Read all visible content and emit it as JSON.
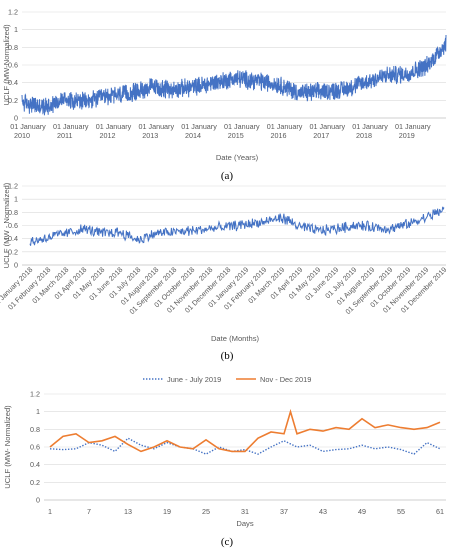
{
  "chart_data": [
    {
      "type": "line",
      "panel_label": "(a)",
      "ylabel": "UCLF (MW-Normalized)",
      "xlabel": "Date (Years)",
      "ylim": [
        0,
        1.2
      ],
      "yticks": [
        "0",
        "0.2",
        "0.4",
        "0.6",
        "0.8",
        "1",
        "1.2"
      ],
      "xtick_labels": [
        [
          "01 January",
          "2010"
        ],
        [
          "01 January",
          "2011"
        ],
        [
          "01 January",
          "2012"
        ],
        [
          "01 January",
          "2013"
        ],
        [
          "01 January",
          "2014"
        ],
        [
          "01 January",
          "2015"
        ],
        [
          "01 January",
          "2016"
        ],
        [
          "01 January",
          "2017"
        ],
        [
          "01 January",
          "2018"
        ],
        [
          "01 January",
          "2019"
        ]
      ],
      "grid": true,
      "color": "#4472c4",
      "series": [
        {
          "x_start": "2010-01",
          "x_end": "2019-12",
          "trend": [
            [
              "2010-01",
              0.18
            ],
            [
              "2010-07",
              0.12
            ],
            [
              "2011-01",
              0.22
            ],
            [
              "2011-07",
              0.18
            ],
            [
              "2012-01",
              0.25
            ],
            [
              "2012-07",
              0.27
            ],
            [
              "2013-01",
              0.35
            ],
            [
              "2013-07",
              0.32
            ],
            [
              "2014-01",
              0.35
            ],
            [
              "2014-07",
              0.4
            ],
            [
              "2015-01",
              0.45
            ],
            [
              "2015-07",
              0.42
            ],
            [
              "2016-01",
              0.38
            ],
            [
              "2016-07",
              0.28
            ],
            [
              "2017-01",
              0.3
            ],
            [
              "2017-07",
              0.32
            ],
            [
              "2018-01",
              0.4
            ],
            [
              "2018-07",
              0.48
            ],
            [
              "2019-01",
              0.5
            ],
            [
              "2019-07",
              0.6
            ],
            [
              "2019-12",
              0.85
            ]
          ],
          "noise": 0.09
        }
      ]
    },
    {
      "type": "line",
      "panel_label": "(b)",
      "ylabel": "UCLF (MW - Normalized)",
      "xlabel": "Date (Months)",
      "ylim": [
        0,
        1.2
      ],
      "yticks": [
        "0",
        "0.2",
        "0.4",
        "0.6",
        "0.8",
        "1",
        "1.2"
      ],
      "xtick_labels": [
        "01 January 2018",
        "01 February 2018",
        "01 March 2018",
        "01 April 2018",
        "01 May 2018",
        "01 June 2018",
        "01 July 2018",
        "01 August 2018",
        "01 September 2018",
        "01 October 2018",
        "01 November 2018",
        "01 December 2018",
        "01 January 2019",
        "01 February 2019",
        "01 March 2019",
        "01 April 2019",
        "01 May 2019",
        "01 June 2019",
        "01 July 2019",
        "01 August 2019",
        "01 September 2019",
        "01 October 2019",
        "01 November 2019",
        "01 December 2019"
      ],
      "grid": true,
      "color": "#4472c4",
      "series": [
        {
          "x_start": "2018-01",
          "x_end": "2019-12",
          "trend": [
            [
              "2018-01",
              0.35
            ],
            [
              "2018-02",
              0.42
            ],
            [
              "2018-03",
              0.48
            ],
            [
              "2018-04",
              0.55
            ],
            [
              "2018-05",
              0.48
            ],
            [
              "2018-06",
              0.5
            ],
            [
              "2018-07",
              0.38
            ],
            [
              "2018-08",
              0.48
            ],
            [
              "2018-09",
              0.5
            ],
            [
              "2018-10",
              0.52
            ],
            [
              "2018-11",
              0.55
            ],
            [
              "2018-12",
              0.58
            ],
            [
              "2019-01",
              0.62
            ],
            [
              "2019-02",
              0.65
            ],
            [
              "2019-03",
              0.72
            ],
            [
              "2019-04",
              0.58
            ],
            [
              "2019-05",
              0.52
            ],
            [
              "2019-06",
              0.55
            ],
            [
              "2019-07",
              0.6
            ],
            [
              "2019-08",
              0.58
            ],
            [
              "2019-09",
              0.55
            ],
            [
              "2019-10",
              0.62
            ],
            [
              "2019-11",
              0.72
            ],
            [
              "2019-12",
              0.85
            ]
          ],
          "noise": 0.07
        }
      ]
    },
    {
      "type": "line",
      "panel_label": "(c)",
      "ylabel": "UCLF (MW- Normalized)",
      "xlabel": "Days",
      "ylim": [
        0,
        1.2
      ],
      "yticks": [
        "0",
        "0.2",
        "0.4",
        "0.6",
        "0.8",
        "1",
        "1.2"
      ],
      "xticks": [
        1,
        7,
        13,
        19,
        25,
        31,
        37,
        43,
        49,
        55,
        61
      ],
      "xlim": [
        1,
        61
      ],
      "grid": true,
      "legend_position": "top",
      "series": [
        {
          "name": "June - July 2019",
          "color": "#4472c4",
          "style": "dotted",
          "x": [
            1,
            3,
            5,
            7,
            9,
            11,
            13,
            15,
            17,
            19,
            21,
            23,
            25,
            27,
            29,
            31,
            33,
            35,
            37,
            39,
            41,
            43,
            45,
            47,
            49,
            51,
            53,
            55,
            57,
            59,
            61
          ],
          "values": [
            0.58,
            0.57,
            0.58,
            0.65,
            0.62,
            0.55,
            0.7,
            0.62,
            0.58,
            0.65,
            0.6,
            0.58,
            0.52,
            0.6,
            0.55,
            0.57,
            0.52,
            0.6,
            0.67,
            0.6,
            0.62,
            0.55,
            0.57,
            0.58,
            0.62,
            0.58,
            0.6,
            0.57,
            0.52,
            0.65,
            0.58
          ]
        },
        {
          "name": "Nov - Dec 2019",
          "color": "#ed7d31",
          "style": "solid",
          "x": [
            1,
            3,
            5,
            7,
            9,
            11,
            13,
            15,
            17,
            19,
            21,
            23,
            25,
            27,
            29,
            31,
            33,
            35,
            37,
            38,
            39,
            41,
            43,
            45,
            47,
            49,
            51,
            53,
            55,
            57,
            59,
            61
          ],
          "values": [
            0.6,
            0.72,
            0.75,
            0.65,
            0.67,
            0.72,
            0.63,
            0.55,
            0.6,
            0.67,
            0.6,
            0.58,
            0.68,
            0.58,
            0.55,
            0.55,
            0.7,
            0.77,
            0.75,
            1.0,
            0.75,
            0.8,
            0.78,
            0.82,
            0.8,
            0.92,
            0.82,
            0.85,
            0.82,
            0.8,
            0.82,
            0.88
          ]
        }
      ]
    }
  ]
}
